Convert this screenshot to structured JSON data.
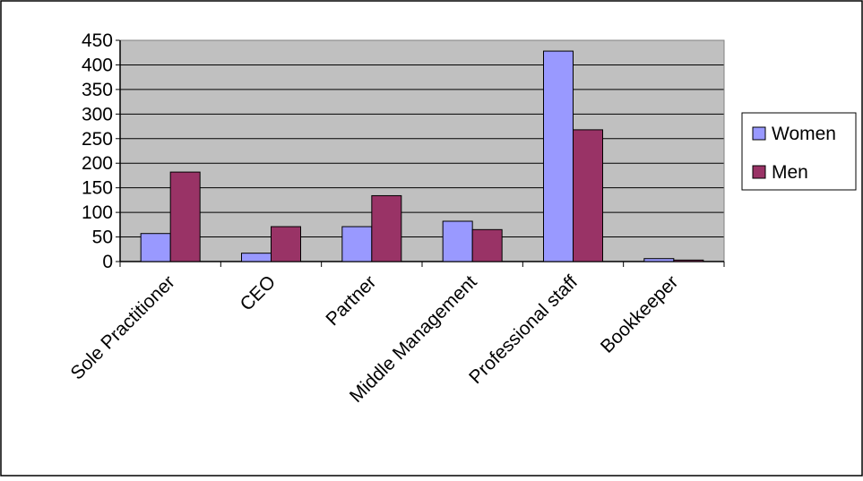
{
  "chart_data": {
    "type": "bar",
    "title": "",
    "xlabel": "",
    "ylabel": "",
    "categories": [
      "Sole Practitioner",
      "CEO",
      "Partner",
      "Middle Management",
      "Professional staff",
      "Bookkeeper"
    ],
    "series": [
      {
        "name": "Women",
        "values": [
          57,
          17,
          71,
          82,
          428,
          6
        ],
        "color": "#9999ff"
      },
      {
        "name": "Men",
        "values": [
          182,
          71,
          134,
          65,
          268,
          3
        ],
        "color": "#993366"
      }
    ],
    "ylim": [
      0,
      450
    ],
    "yticks": [
      "0",
      "50",
      "100",
      "150",
      "200",
      "250",
      "300",
      "350",
      "400",
      "450"
    ],
    "grid": true,
    "plot_background": "#c0c0c0",
    "legend_position": "right"
  }
}
